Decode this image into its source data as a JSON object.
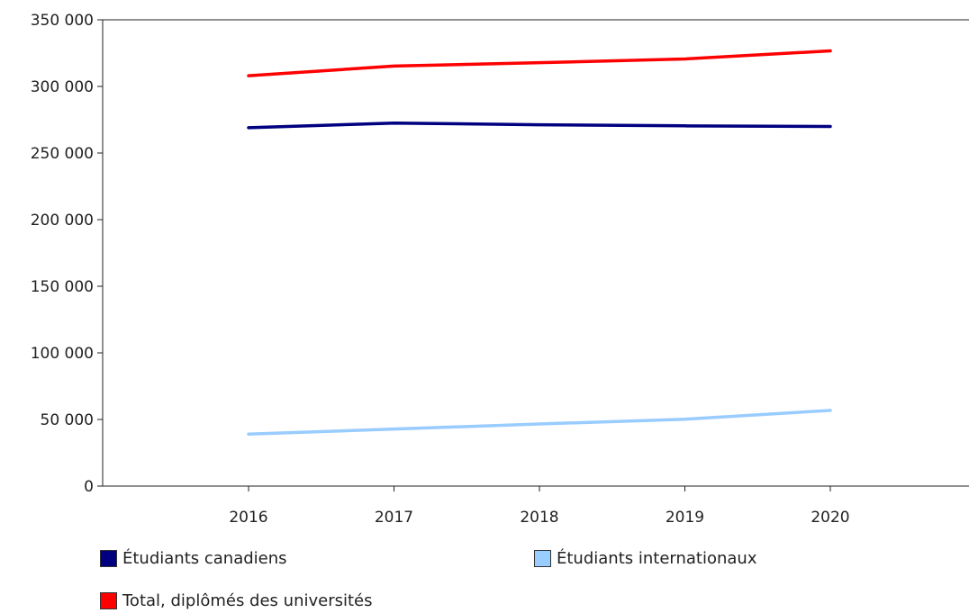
{
  "chart_data": {
    "type": "line",
    "title": "",
    "xlabel": "",
    "ylabel": "",
    "x": [
      "2016",
      "2017",
      "2018",
      "2019",
      "2020"
    ],
    "ylim": [
      0,
      350000
    ],
    "yticks": [
      0,
      50000,
      100000,
      150000,
      200000,
      250000,
      300000,
      350000
    ],
    "ytick_labels": [
      "0",
      "50 000",
      "100 000",
      "150 000",
      "200 000",
      "250 000",
      "300 000",
      "350 000"
    ],
    "grid": false,
    "legend_position": "bottom",
    "series": [
      {
        "name": "Étudiants canadiens",
        "color": "#000080",
        "values": [
          269000,
          272500,
          271200,
          270400,
          269900
        ]
      },
      {
        "name": "Étudiants internationaux",
        "color": "#99ccff",
        "values": [
          39000,
          42800,
          46600,
          50200,
          56800
        ]
      },
      {
        "name": "Total, diplômés des universités",
        "color": "#ff0000",
        "values": [
          308000,
          315300,
          317800,
          320600,
          326700
        ]
      }
    ]
  }
}
